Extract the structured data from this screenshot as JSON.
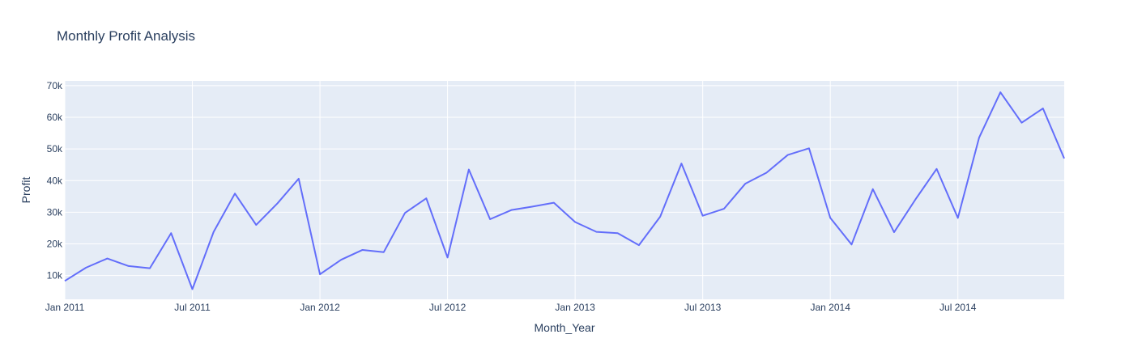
{
  "chart_data": {
    "type": "line",
    "title": "Monthly Profit Analysis",
    "xlabel": "Month_Year",
    "ylabel": "Profit",
    "x_ticks": [
      "Jan 2011",
      "Jul 2011",
      "Jan 2012",
      "Jul 2012",
      "Jan 2013",
      "Jul 2013",
      "Jan 2014",
      "Jul 2014"
    ],
    "y_ticks": [
      "10k",
      "20k",
      "30k",
      "40k",
      "50k",
      "60k",
      "70k"
    ],
    "y_tick_values": [
      10000,
      20000,
      30000,
      40000,
      50000,
      60000,
      70000
    ],
    "x_range": [
      "2011-01",
      "2014-12"
    ],
    "ylim": [
      2500,
      71500
    ],
    "grid": true,
    "line_color": "#636efa",
    "plot_bg": "#e5ecf6",
    "series": [
      {
        "x": [
          "2011-01",
          "2011-02",
          "2011-03",
          "2011-04",
          "2011-05",
          "2011-06",
          "2011-07",
          "2011-08",
          "2011-09",
          "2011-10",
          "2011-11",
          "2011-12",
          "2012-01",
          "2012-02",
          "2012-03",
          "2012-04",
          "2012-05",
          "2012-06",
          "2012-07",
          "2012-08",
          "2012-09",
          "2012-10",
          "2012-11",
          "2012-12",
          "2013-01",
          "2013-02",
          "2013-03",
          "2013-04",
          "2013-05",
          "2013-06",
          "2013-07",
          "2013-08",
          "2013-09",
          "2013-10",
          "2013-11",
          "2013-12",
          "2014-01",
          "2014-02",
          "2014-03",
          "2014-04",
          "2014-05",
          "2014-06",
          "2014-07",
          "2014-08",
          "2014-09",
          "2014-10",
          "2014-11",
          "2014-12"
        ],
        "values": [
          8300,
          12500,
          15400,
          13000,
          12300,
          23400,
          5700,
          23800,
          35900,
          26000,
          32800,
          40600,
          10400,
          15000,
          18100,
          17400,
          29800,
          34400,
          15700,
          43500,
          27800,
          30700,
          31800,
          33000,
          26900,
          23800,
          23400,
          19600,
          28600,
          45400,
          28900,
          31100,
          39000,
          42500,
          48100,
          50200,
          28200,
          19800,
          37300,
          23700,
          34000,
          43700,
          28200,
          53600,
          67900,
          58300,
          62800,
          47000
        ]
      }
    ]
  }
}
